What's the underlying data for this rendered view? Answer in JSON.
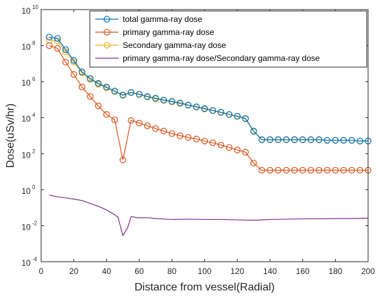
{
  "chart_data": {
    "type": "line",
    "xlabel": "Distance from vessel(Radial)",
    "ylabel": "Dose(uSv/hr)",
    "xlim": [
      0,
      200
    ],
    "ylim_exponent": [
      -4,
      10
    ],
    "yscale": "log",
    "grid": false,
    "legend_position": "top-right",
    "x_ticks": [
      "0",
      "20",
      "40",
      "60",
      "80",
      "100",
      "120",
      "140",
      "160",
      "180",
      "200"
    ],
    "y_ticks": [
      {
        "base": "10",
        "exp": "-4"
      },
      {
        "base": "10",
        "exp": "-2"
      },
      {
        "base": "10",
        "exp": "0"
      },
      {
        "base": "10",
        "exp": "2"
      },
      {
        "base": "10",
        "exp": "4"
      },
      {
        "base": "10",
        "exp": "6"
      },
      {
        "base": "10",
        "exp": "8"
      },
      {
        "base": "10",
        "exp": "10"
      }
    ],
    "x": [
      5,
      10,
      15,
      20,
      25,
      30,
      35,
      40,
      45,
      50,
      55,
      60,
      65,
      70,
      75,
      80,
      85,
      90,
      95,
      100,
      105,
      110,
      115,
      120,
      125,
      130,
      135,
      140,
      145,
      150,
      155,
      160,
      165,
      170,
      175,
      180,
      185,
      190,
      195,
      200
    ],
    "series": [
      {
        "name": "total gamma-ray dose",
        "color": "#0072BD",
        "marker": "circle",
        "values": [
          300000000.0,
          250000000.0,
          60000000.0,
          15000000.0,
          3500000.0,
          1500000.0,
          800000.0,
          500000.0,
          300000.0,
          180000.0,
          250000.0,
          200000.0,
          150000.0,
          120000.0,
          95000.0,
          80000.0,
          65000.0,
          50000.0,
          40000.0,
          32000.0,
          25000.0,
          20000.0,
          15000.0,
          12000.0,
          9000.0,
          1800.0,
          600.0,
          600.0,
          600.0,
          600.0,
          600.0,
          600.0,
          600.0,
          600.0,
          550.0,
          550.0,
          550.0,
          550.0,
          500.0,
          500.0
        ]
      },
      {
        "name": "primary gamma-ray dose",
        "color": "#D95319",
        "marker": "circle",
        "values": [
          100000000.0,
          70000000.0,
          12000000.0,
          2500000.0,
          500000.0,
          150000.0,
          45000.0,
          15000.0,
          7500.0,
          45.0,
          7000.0,
          5000.0,
          3500.0,
          2500.0,
          1800.0,
          1300.0,
          1000.0,
          800.0,
          650.0,
          500.0,
          400.0,
          300.0,
          220.0,
          160.0,
          120.0,
          30.0,
          12.0,
          12.0,
          12.0,
          12.0,
          12.0,
          12.0,
          12.0,
          12.0,
          12.0,
          12.0,
          12.0,
          12.0,
          12.0,
          12.0
        ]
      },
      {
        "name": "Secondary gamma-ray dose",
        "color": "#EDB120",
        "marker": "circle",
        "values": [
          200000000.0,
          180000000.0,
          45000000.0,
          12000000.0,
          3000000.0,
          1300000.0,
          700000.0,
          450000.0,
          280000.0,
          170000.0,
          240000.0,
          190000.0,
          140000.0,
          110000.0,
          90000.0,
          75000.0,
          60000.0,
          48000.0,
          38000.0,
          30000.0,
          24000.0,
          19000.0,
          14500.0,
          11500.0,
          8500.0,
          1700.0,
          580.0,
          580.0,
          580.0,
          580.0,
          580.0,
          580.0,
          580.0,
          580.0,
          540.0,
          540.0,
          540.0,
          540.0,
          500.0,
          500.0
        ]
      },
      {
        "name": "primary gamma-ray dose/Secondary gamma-ray dose",
        "color": "#7E2F8E",
        "marker": "none",
        "x": [
          5,
          10,
          15,
          20,
          25,
          30,
          35,
          40,
          45,
          47,
          50,
          53,
          55,
          60,
          65,
          70,
          80,
          90,
          100,
          110,
          120,
          130,
          140,
          150,
          160,
          170,
          180,
          190,
          200
        ],
        "values": [
          0.5,
          0.4,
          0.35,
          0.3,
          0.25,
          0.17,
          0.12,
          0.075,
          0.04,
          0.03,
          0.0028,
          0.008,
          0.032,
          0.027,
          0.028,
          0.025,
          0.022,
          0.023,
          0.022,
          0.022,
          0.021,
          0.02,
          0.022,
          0.023,
          0.024,
          0.024,
          0.025,
          0.025,
          0.026
        ]
      }
    ]
  }
}
